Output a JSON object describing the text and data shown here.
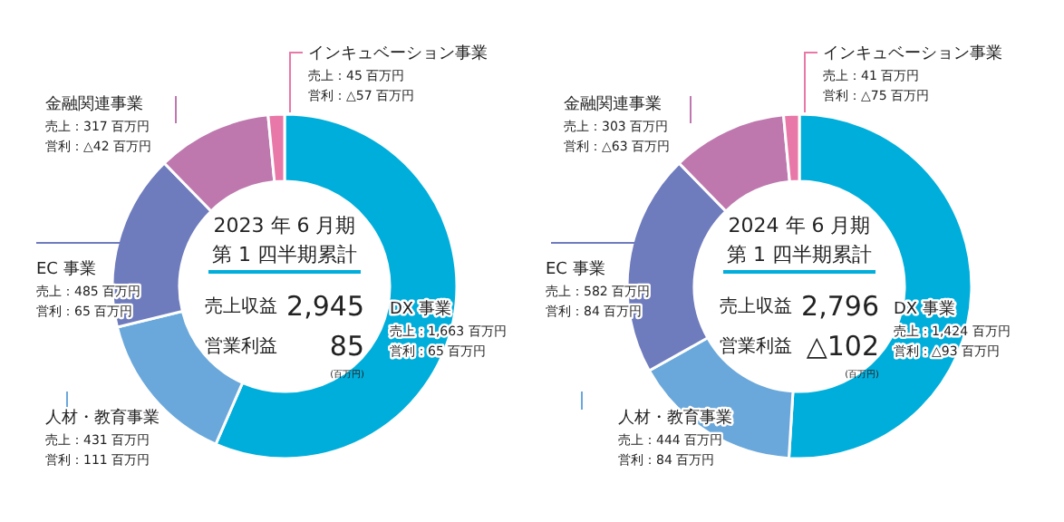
{
  "chart_data": [
    {
      "type": "donut",
      "title": "2023 年 6 月期",
      "subtitle": "第 1 四半期累計",
      "categories": [
        "DX 事業",
        "人材・教育事業",
        "EC 事業",
        "金融関連事業",
        "インキュベーション事業"
      ],
      "values": [
        1663,
        431,
        485,
        317,
        45
      ],
      "colors": [
        "#00aedb",
        "#6aa8db",
        "#6e7bbd",
        "#be78ae",
        "#e878a8"
      ],
      "value_labels": [
        "売上：1,663 百万円",
        "売上：431 百万円",
        "売上：485 百万円",
        "売上：317 百万円",
        "売上：45 百万円"
      ],
      "annotations": [
        "売上収益",
        "2,945",
        "営業利益",
        "85",
        "(百万円)",
        "営利：65 百万円",
        "営利：111 百万円",
        "営利：65 百万円",
        "営利：△42 百万円",
        "営利：△57 百万円"
      ]
    },
    {
      "type": "donut",
      "title": "2024 年 6 月期",
      "subtitle": "第 1 四半期累計",
      "categories": [
        "DX 事業",
        "人材・教育事業",
        "EC 事業",
        "金融関連事業",
        "インキュベーション事業"
      ],
      "values": [
        1424,
        444,
        582,
        303,
        41
      ],
      "colors": [
        "#00aedb",
        "#6aa8db",
        "#6e7bbd",
        "#be78ae",
        "#e878a8"
      ],
      "value_labels": [
        "売上：1,424 百万円",
        "売上：444 百万円",
        "売上：582 百万円",
        "売上：303 百万円",
        "売上：41 百万円"
      ],
      "annotations": [
        "売上収益",
        "2,796",
        "営業利益",
        "△102",
        "(百万円)",
        "営利：△93 百万円",
        "営利：84 百万円",
        "営利：84 百万円",
        "営利：△63 百万円",
        "営利：△75 百万円"
      ]
    }
  ]
}
